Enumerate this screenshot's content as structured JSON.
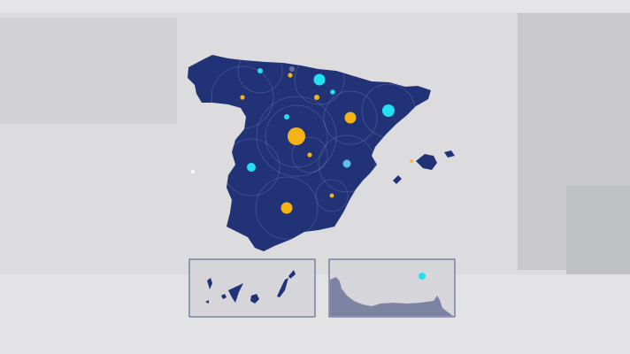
{
  "colors": {
    "background": "#dcdcde",
    "land": "#223277",
    "inset_land": "#7d84a3",
    "inset_border": "#4a5583",
    "dot_cyan": "#22e0f2",
    "dot_orange": "#f5b316",
    "dot_gray": "#6a7196",
    "ring": "#8a94c8"
  },
  "map": {
    "main": "spain-peninsula-balearic",
    "insets": [
      "canary-islands",
      "ceuta-melilla-coast"
    ]
  }
}
